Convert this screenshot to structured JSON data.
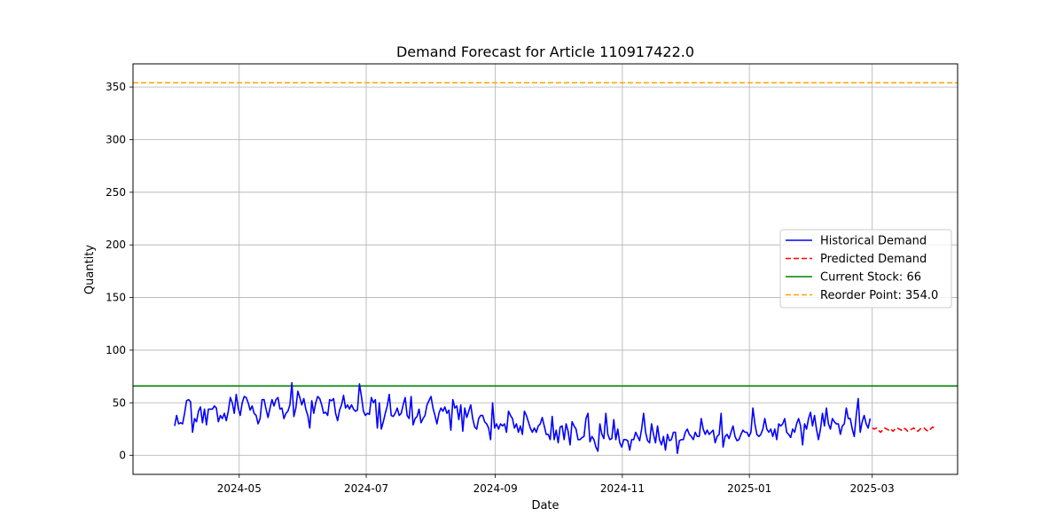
{
  "chart_data": {
    "type": "line",
    "title": "Demand Forecast for Article 110917422.0",
    "xlabel": "Date",
    "ylabel": "Quantity",
    "x_ticks": [
      "2024-05",
      "2024-07",
      "2024-09",
      "2024-11",
      "2025-01",
      "2025-03"
    ],
    "y_ticks": [
      0,
      50,
      100,
      150,
      200,
      250,
      300,
      350
    ],
    "xlim": [
      "2024-03-11",
      "2025-04-11"
    ],
    "ylim": [
      -18,
      372
    ],
    "grid": true,
    "legend_position": "center-right",
    "series": [
      {
        "name": "Historical Demand",
        "style": "solid",
        "color": "#0000ff",
        "x_start": "2024-03-31",
        "x_end": "2025-02-28",
        "values": [
          28,
          38,
          30,
          31,
          30,
          40,
          52,
          53,
          51,
          22,
          35,
          32,
          42,
          46,
          31,
          44,
          29,
          44,
          44,
          44,
          47,
          45,
          32,
          38,
          35,
          40,
          33,
          42,
          55,
          50,
          40,
          58,
          45,
          38,
          50,
          56,
          55,
          50,
          43,
          47,
          40,
          38,
          30,
          35,
          53,
          53,
          44,
          36,
          45,
          53,
          47,
          53,
          55,
          44,
          45,
          35,
          40,
          42,
          48,
          69,
          37,
          45,
          61,
          55,
          48,
          54,
          44,
          38,
          26,
          52,
          40,
          50,
          56,
          54,
          48,
          40,
          41,
          38,
          53,
          52,
          54,
          40,
          33,
          43,
          48,
          57,
          45,
          48,
          44,
          48,
          44,
          42,
          43,
          68,
          56,
          42,
          38,
          40,
          39,
          55,
          50,
          53,
          26,
          50,
          25,
          32,
          40,
          47,
          58,
          38,
          37,
          40,
          45,
          38,
          40,
          48,
          55,
          38,
          35,
          56,
          29,
          35,
          37,
          44,
          31,
          35,
          38,
          48,
          52,
          56,
          45,
          38,
          30,
          40,
          45,
          42,
          46,
          40,
          43,
          24,
          53,
          45,
          47,
          34,
          48,
          23,
          45,
          36,
          42,
          48,
          35,
          27,
          25,
          35,
          38,
          38,
          32,
          30,
          26,
          15,
          50,
          26,
          30,
          25,
          30,
          28,
          30,
          22,
          42,
          38,
          35,
          26,
          30,
          22,
          28,
          20,
          42,
          38,
          32,
          26,
          22,
          26,
          22,
          28,
          30,
          36,
          28,
          20,
          20,
          15,
          37,
          15,
          24,
          12,
          27,
          28,
          15,
          30,
          23,
          10,
          32,
          28,
          25,
          15,
          15,
          17,
          18,
          35,
          40,
          13,
          18,
          15,
          8,
          4,
          30,
          20,
          16,
          40,
          20,
          15,
          16,
          34,
          15,
          25,
          12,
          8,
          15,
          15,
          14,
          5,
          15,
          15,
          22,
          18,
          14,
          25,
          40,
          22,
          14,
          12,
          30,
          20,
          12,
          28,
          15,
          10,
          18,
          5,
          20,
          14,
          15,
          22,
          22,
          2,
          14,
          15,
          15,
          22,
          25,
          20,
          18,
          15,
          22,
          18,
          18,
          35,
          25,
          20,
          24,
          20,
          22,
          24,
          12,
          18,
          20,
          40,
          8,
          18,
          20,
          16,
          22,
          28,
          18,
          14,
          15,
          20,
          24,
          22,
          22,
          18,
          22,
          45,
          30,
          20,
          18,
          20,
          25,
          35,
          25,
          22,
          25,
          18,
          25,
          15,
          30,
          28,
          30,
          35,
          22,
          20,
          17,
          25,
          22,
          30,
          35,
          28,
          10,
          30,
          25,
          35,
          41,
          28,
          38,
          25,
          15,
          25,
          40,
          28,
          45,
          30,
          25,
          35,
          32,
          30,
          30,
          20,
          28,
          30,
          45,
          35,
          35,
          25,
          18,
          38,
          54,
          22,
          32,
          38,
          30,
          26,
          35
        ]
      },
      {
        "name": "Predicted Demand",
        "style": "dashed",
        "color": "#ff0000",
        "x_start": "2025-03-01",
        "x_end": "2025-03-31",
        "values": [
          26,
          25,
          26,
          24,
          22,
          24,
          26,
          25,
          24,
          25,
          23,
          25,
          26,
          25,
          24,
          26,
          25,
          23,
          24,
          25,
          26,
          24,
          23,
          25,
          26,
          26,
          24,
          23,
          25,
          27,
          26
        ]
      },
      {
        "name": "Current Stock: 66",
        "style": "solid",
        "color": "#008000",
        "hline": 66
      },
      {
        "name": "Reorder Point: 354.0",
        "style": "dashed",
        "color": "#ffa500",
        "hline": 354
      }
    ]
  }
}
